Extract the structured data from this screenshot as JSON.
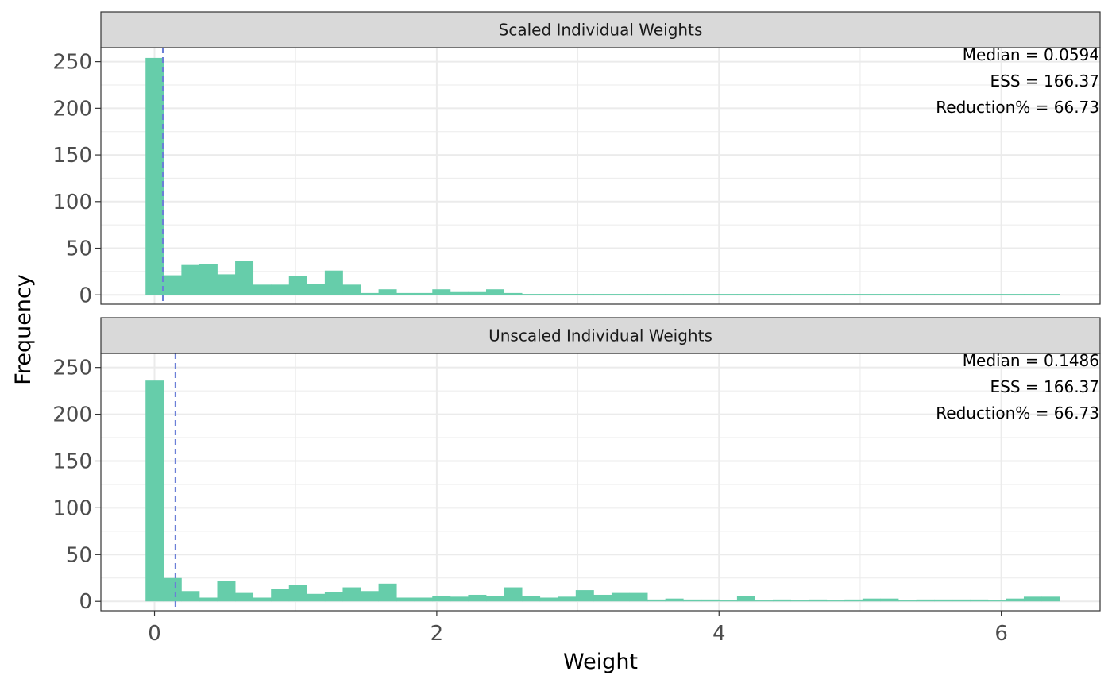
{
  "chart_data": {
    "type": "bar",
    "xlabel": "Weight",
    "ylabel": "Frequency",
    "xlim": [
      -0.38,
      6.7
    ],
    "ylim": [
      -10,
      265
    ],
    "x_ticks": [
      0,
      2,
      4,
      6
    ],
    "y_ticks": [
      0,
      50,
      100,
      150,
      200,
      250
    ],
    "bin_width": 0.127,
    "grid": true,
    "colors": {
      "bar": "#66CDAA",
      "median_line": "#6B7FD7",
      "strip": "#D9D9D9"
    },
    "panels": [
      {
        "title": "Scaled Individual Weights",
        "median": 0.0594,
        "annotations": [
          "Median = 0.0594",
          "ESS = 166.37",
          "Reduction% = 66.73"
        ],
        "bin_starts": [
          -0.0635,
          0.0635,
          0.1905,
          0.3175,
          0.4445,
          0.5715,
          0.6985,
          0.8255,
          0.9525,
          1.0795,
          1.2065,
          1.3335,
          1.4605,
          1.5875,
          1.7145,
          1.8415,
          1.9685,
          2.0955,
          2.2225,
          2.3495,
          2.4765,
          2.6035,
          2.7305,
          2.8575,
          2.9845,
          3.1115,
          3.2385,
          3.3655,
          3.4925,
          3.6195,
          3.7465,
          3.8735,
          4.0005,
          4.1275,
          4.2545,
          4.3815,
          4.5085,
          4.6355,
          4.7625,
          4.8895,
          5.0165,
          5.1435,
          5.2705,
          5.3975,
          5.5245,
          5.6515,
          5.7785,
          5.9055,
          6.0325,
          6.1595,
          6.2865
        ],
        "counts": [
          254,
          21,
          32,
          33,
          22,
          36,
          11,
          11,
          20,
          12,
          26,
          11,
          2,
          6,
          2,
          2,
          6,
          3,
          3,
          6,
          2,
          1,
          1,
          1,
          1,
          1,
          1,
          1,
          1,
          1,
          1,
          1,
          1,
          1,
          1,
          1,
          1,
          1,
          1,
          1,
          1,
          1,
          1,
          1,
          1,
          1,
          1,
          1,
          1,
          1,
          1
        ]
      },
      {
        "title": "Unscaled Individual Weights",
        "median": 0.1486,
        "annotations": [
          "Median = 0.1486",
          "ESS = 166.37",
          "Reduction% = 66.73"
        ],
        "bin_starts": [
          -0.0635,
          0.0635,
          0.1905,
          0.3175,
          0.4445,
          0.5715,
          0.6985,
          0.8255,
          0.9525,
          1.0795,
          1.2065,
          1.3335,
          1.4605,
          1.5875,
          1.7145,
          1.8415,
          1.9685,
          2.0955,
          2.2225,
          2.3495,
          2.4765,
          2.6035,
          2.7305,
          2.8575,
          2.9845,
          3.1115,
          3.2385,
          3.3655,
          3.4925,
          3.6195,
          3.7465,
          3.8735,
          4.0005,
          4.1275,
          4.2545,
          4.3815,
          4.5085,
          4.6355,
          4.7625,
          4.8895,
          5.0165,
          5.1435,
          5.2705,
          5.3975,
          5.5245,
          5.6515,
          5.7785,
          5.9055,
          6.0325,
          6.1595,
          6.2865
        ],
        "counts": [
          236,
          25,
          11,
          4,
          22,
          9,
          4,
          13,
          18,
          8,
          10,
          15,
          11,
          19,
          4,
          4,
          6,
          5,
          7,
          6,
          15,
          6,
          4,
          5,
          12,
          7,
          9,
          9,
          2,
          3,
          2,
          2,
          1,
          6,
          1,
          2,
          1,
          2,
          1,
          2,
          3,
          3,
          1,
          2,
          2,
          2,
          2,
          1,
          3,
          5,
          5
        ]
      }
    ]
  }
}
